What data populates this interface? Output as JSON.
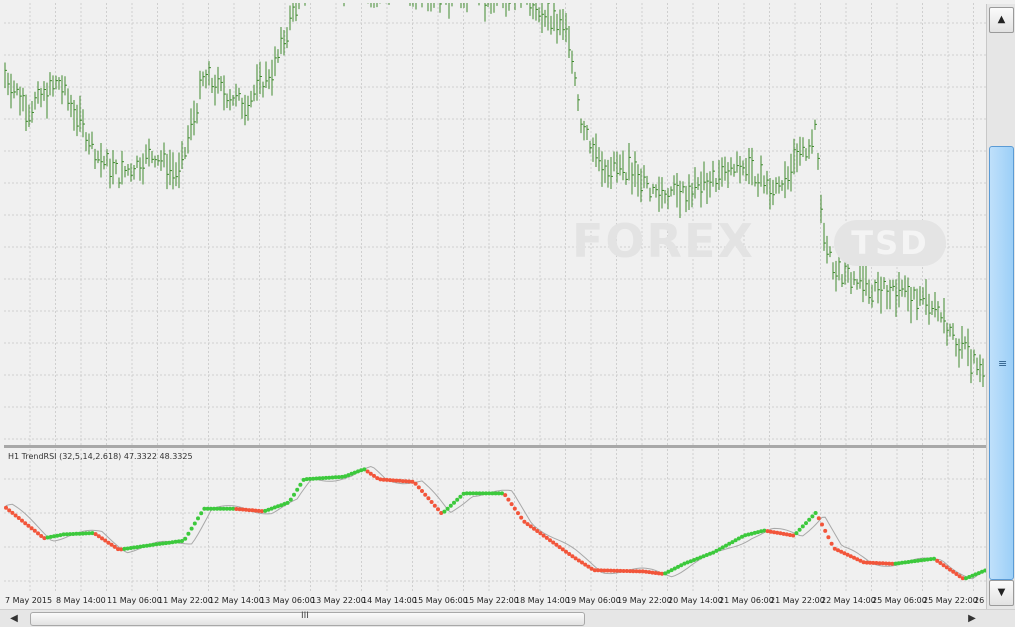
{
  "watermark": {
    "text": "FOREX",
    "badge": "TSD"
  },
  "indicator": {
    "label": "H1  TrendRSI (32,5,14,2.618) 47.3322 48.3325"
  },
  "time_axis": {
    "labels": [
      "7 May 2015",
      "8 May 14:00",
      "11 May 06:00",
      "11 May 22:00",
      "12 May 14:00",
      "13 May 06:00",
      "13 May 22:00",
      "14 May 14:00",
      "15 May 06:00",
      "15 May 22:00",
      "18 May 14:00",
      "19 May 06:00",
      "19 May 22:00",
      "20 May 14:00",
      "21 May 06:00",
      "21 May 22:00",
      "22 May 14:00",
      "25 May 06:00",
      "25 May 22:00",
      "26 May"
    ]
  },
  "scrollbar": {
    "up_icon": "▲",
    "down_icon": "▼",
    "grip_icon": "≡",
    "left_icon": "◀",
    "right_icon": "▶",
    "hgrip_icon": "III"
  },
  "colors": {
    "bars": "#3f8a2e",
    "rsi_up": "#3cc93c",
    "rsi_down": "#f2553a",
    "signal_line": "#a8a8a8",
    "grid": "#cfcfcf",
    "scroll_accent": "#9ccff7"
  },
  "chart_data": {
    "type": "bar",
    "price_anchors": [
      [
        0,
        0.84
      ],
      [
        25,
        0.76
      ],
      [
        55,
        0.82
      ],
      [
        95,
        0.65
      ],
      [
        115,
        0.61
      ],
      [
        150,
        0.66
      ],
      [
        175,
        0.61
      ],
      [
        200,
        0.83
      ],
      [
        240,
        0.77
      ],
      [
        270,
        0.85
      ],
      [
        285,
        0.95
      ],
      [
        300,
        1.05
      ],
      [
        420,
        1.03
      ],
      [
        445,
        1.02
      ],
      [
        520,
        1.02
      ],
      [
        545,
        0.96
      ],
      [
        565,
        0.93
      ],
      [
        578,
        0.72
      ],
      [
        600,
        0.63
      ],
      [
        630,
        0.62
      ],
      [
        650,
        0.57
      ],
      [
        680,
        0.57
      ],
      [
        710,
        0.6
      ],
      [
        740,
        0.63
      ],
      [
        770,
        0.58
      ],
      [
        800,
        0.66
      ],
      [
        812,
        0.71
      ],
      [
        818,
        0.5
      ],
      [
        830,
        0.4
      ],
      [
        860,
        0.36
      ],
      [
        900,
        0.34
      ],
      [
        930,
        0.32
      ],
      [
        950,
        0.24
      ],
      [
        970,
        0.19
      ],
      [
        982,
        0.14
      ]
    ],
    "rsi_anchors": [
      [
        0,
        0.6
      ],
      [
        40,
        0.35
      ],
      [
        60,
        0.38
      ],
      [
        90,
        0.39
      ],
      [
        115,
        0.26
      ],
      [
        150,
        0.3
      ],
      [
        180,
        0.33
      ],
      [
        200,
        0.58
      ],
      [
        230,
        0.58
      ],
      [
        260,
        0.56
      ],
      [
        285,
        0.63
      ],
      [
        300,
        0.81
      ],
      [
        340,
        0.83
      ],
      [
        360,
        0.89
      ],
      [
        375,
        0.81
      ],
      [
        410,
        0.79
      ],
      [
        438,
        0.54
      ],
      [
        460,
        0.7
      ],
      [
        500,
        0.7
      ],
      [
        520,
        0.48
      ],
      [
        570,
        0.2
      ],
      [
        590,
        0.1
      ],
      [
        640,
        0.09
      ],
      [
        660,
        0.07
      ],
      [
        680,
        0.15
      ],
      [
        710,
        0.24
      ],
      [
        740,
        0.37
      ],
      [
        760,
        0.41
      ],
      [
        790,
        0.37
      ],
      [
        812,
        0.55
      ],
      [
        830,
        0.27
      ],
      [
        860,
        0.16
      ],
      [
        890,
        0.15
      ],
      [
        930,
        0.19
      ],
      [
        960,
        0.03
      ],
      [
        982,
        0.1
      ]
    ],
    "rsi_range": [
      0,
      1
    ]
  }
}
